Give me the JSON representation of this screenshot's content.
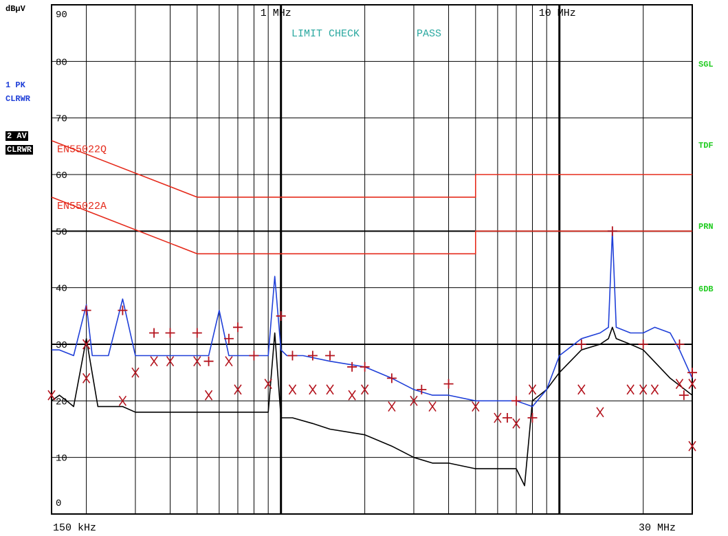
{
  "y_unit": "dBµV",
  "status": {
    "check_label": "LIMIT CHECK",
    "check_result": "PASS"
  },
  "traces": {
    "t1": {
      "line1": "1 PK",
      "line2": "CLRWR",
      "color": "#1f3fd8"
    },
    "t2": {
      "line1": "2 AV",
      "line2": "CLRWR",
      "color": "#000000"
    }
  },
  "softkeys": [
    "SGL",
    "TDF",
    "PRN",
    "6DB"
  ],
  "colors": {
    "limit": "#e52b1c",
    "marker": "#b4141e",
    "status": "#2aa8a0",
    "softkey": "#22cc22",
    "grid": "#000000"
  },
  "chart_data": {
    "type": "line",
    "x_scale": "log",
    "xlim_mhz": [
      0.15,
      30
    ],
    "ylim": [
      0,
      90
    ],
    "y_tick_labels": [
      "90",
      "80",
      "70",
      "60",
      "50",
      "40",
      "30",
      "20",
      "10",
      "0"
    ],
    "y_tick_values": [
      90,
      80,
      70,
      60,
      50,
      40,
      30,
      20,
      10,
      0
    ],
    "x_top_labels": [
      {
        "mhz": 1,
        "label": "1 MHz"
      },
      {
        "mhz": 10,
        "label": "10 MHz"
      }
    ],
    "x_start_label": "150 kHz",
    "x_stop_label": "30 MHz",
    "grid_x_mhz": [
      0.2,
      0.3,
      0.4,
      0.5,
      0.6,
      0.7,
      0.8,
      0.9,
      1,
      2,
      3,
      4,
      5,
      6,
      7,
      8,
      9,
      10,
      20,
      30
    ],
    "limits": [
      {
        "name": "EN55022Q",
        "points": [
          [
            0.15,
            66
          ],
          [
            0.5,
            56
          ],
          [
            5,
            56
          ],
          [
            5,
            60
          ],
          [
            30,
            60
          ]
        ]
      },
      {
        "name": "EN55022A",
        "points": [
          [
            0.15,
            56
          ],
          [
            0.5,
            46
          ],
          [
            5,
            46
          ],
          [
            5,
            50
          ],
          [
            30,
            50
          ]
        ]
      }
    ],
    "series": [
      {
        "name": "1 PK",
        "x_mhz": [
          0.15,
          0.16,
          0.18,
          0.2,
          0.21,
          0.24,
          0.27,
          0.3,
          0.35,
          0.4,
          0.45,
          0.5,
          0.55,
          0.6,
          0.65,
          0.7,
          0.75,
          0.8,
          0.85,
          0.9,
          0.95,
          1.0,
          1.05,
          1.1,
          1.2,
          1.5,
          2,
          2.5,
          3,
          3.5,
          4,
          5,
          6,
          7,
          8,
          9,
          10,
          12,
          14,
          15,
          15.5,
          16,
          18,
          20,
          22,
          25,
          27,
          30
        ],
        "values": [
          29,
          29,
          28,
          37,
          28,
          28,
          38,
          28,
          28,
          28,
          28,
          28,
          28,
          36,
          28,
          28,
          28,
          28,
          28,
          28,
          42,
          29,
          28,
          28,
          28,
          27,
          26,
          24,
          22,
          21,
          21,
          20,
          20,
          20,
          19,
          22,
          28,
          31,
          32,
          33,
          50,
          33,
          32,
          32,
          33,
          32,
          29,
          24
        ]
      },
      {
        "name": "2 AV",
        "x_mhz": [
          0.15,
          0.16,
          0.17,
          0.18,
          0.2,
          0.22,
          0.25,
          0.27,
          0.3,
          0.35,
          0.4,
          0.45,
          0.5,
          0.6,
          0.7,
          0.8,
          0.9,
          0.95,
          1.0,
          1.1,
          1.3,
          1.5,
          2,
          2.5,
          3,
          3.5,
          4,
          5,
          6,
          7,
          7.5,
          8,
          9,
          10,
          12,
          14,
          15,
          15.5,
          16,
          18,
          20,
          25,
          30
        ],
        "values": [
          20,
          21,
          20,
          19,
          31,
          19,
          19,
          19,
          18,
          18,
          18,
          18,
          18,
          18,
          18,
          18,
          18,
          32,
          17,
          17,
          16,
          15,
          14,
          12,
          10,
          9,
          9,
          8,
          8,
          8,
          5,
          20,
          22,
          25,
          29,
          30,
          31,
          33,
          31,
          30,
          29,
          24,
          21
        ]
      }
    ],
    "markers_plus": [
      [
        0.2,
        36
      ],
      [
        0.27,
        36
      ],
      [
        0.35,
        32
      ],
      [
        0.4,
        32
      ],
      [
        0.5,
        32
      ],
      [
        0.55,
        27
      ],
      [
        0.65,
        31
      ],
      [
        0.7,
        33
      ],
      [
        0.8,
        28
      ],
      [
        1.0,
        35
      ],
      [
        1.1,
        28
      ],
      [
        1.3,
        28
      ],
      [
        1.5,
        28
      ],
      [
        1.8,
        26
      ],
      [
        2.0,
        26
      ],
      [
        2.5,
        24
      ],
      [
        3.2,
        22
      ],
      [
        4.0,
        23
      ],
      [
        6.5,
        17
      ],
      [
        7,
        20
      ],
      [
        8,
        17
      ],
      [
        12,
        30
      ],
      [
        15.5,
        50
      ],
      [
        20,
        30
      ],
      [
        27,
        30
      ],
      [
        28,
        21
      ],
      [
        30,
        25
      ]
    ],
    "markers_x": [
      [
        0.15,
        21
      ],
      [
        0.2,
        30
      ],
      [
        0.2,
        24
      ],
      [
        0.27,
        20
      ],
      [
        0.3,
        25
      ],
      [
        0.35,
        27
      ],
      [
        0.4,
        27
      ],
      [
        0.5,
        27
      ],
      [
        0.55,
        21
      ],
      [
        0.65,
        27
      ],
      [
        0.7,
        22
      ],
      [
        0.9,
        23
      ],
      [
        1.1,
        22
      ],
      [
        1.3,
        22
      ],
      [
        1.5,
        22
      ],
      [
        1.8,
        21
      ],
      [
        2.0,
        22
      ],
      [
        2.5,
        19
      ],
      [
        3.0,
        20
      ],
      [
        3.5,
        19
      ],
      [
        5,
        19
      ],
      [
        6,
        17
      ],
      [
        7,
        16
      ],
      [
        8,
        22
      ],
      [
        12,
        22
      ],
      [
        14,
        18
      ],
      [
        18,
        22
      ],
      [
        20,
        22
      ],
      [
        22,
        22
      ],
      [
        27,
        23
      ],
      [
        30,
        23
      ],
      [
        33,
        12
      ]
    ]
  }
}
